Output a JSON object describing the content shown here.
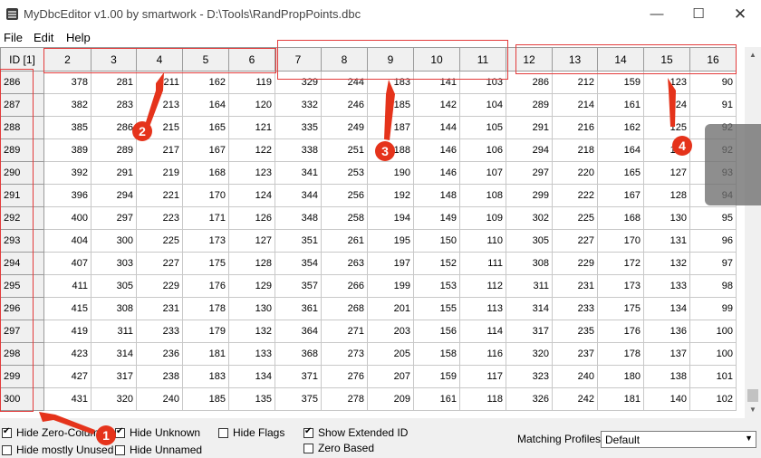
{
  "window": {
    "title": "MyDbcEditor v1.00 by smartwork - D:\\Tools\\RandPropPoints.dbc",
    "minimize": "—",
    "maximize": "☐",
    "close": "✕"
  },
  "menu": {
    "file": "File",
    "edit": "Edit",
    "help": "Help"
  },
  "grid": {
    "columns": [
      "ID [1]",
      "2",
      "3",
      "4",
      "5",
      "6",
      "7",
      "8",
      "9",
      "10",
      "11",
      "12",
      "13",
      "14",
      "15",
      "16"
    ],
    "rows": [
      [
        "286",
        "378",
        "281",
        "211",
        "162",
        "119",
        "329",
        "244",
        "183",
        "141",
        "103",
        "286",
        "212",
        "159",
        "123",
        "90"
      ],
      [
        "287",
        "382",
        "283",
        "213",
        "164",
        "120",
        "332",
        "246",
        "185",
        "142",
        "104",
        "289",
        "214",
        "161",
        "124",
        "91"
      ],
      [
        "288",
        "385",
        "286",
        "215",
        "165",
        "121",
        "335",
        "249",
        "187",
        "144",
        "105",
        "291",
        "216",
        "162",
        "125",
        "92"
      ],
      [
        "289",
        "389",
        "289",
        "217",
        "167",
        "122",
        "338",
        "251",
        "188",
        "146",
        "106",
        "294",
        "218",
        "164",
        "127",
        "92"
      ],
      [
        "290",
        "392",
        "291",
        "219",
        "168",
        "123",
        "341",
        "253",
        "190",
        "146",
        "107",
        "297",
        "220",
        "165",
        "127",
        "93"
      ],
      [
        "291",
        "396",
        "294",
        "221",
        "170",
        "124",
        "344",
        "256",
        "192",
        "148",
        "108",
        "299",
        "222",
        "167",
        "128",
        "94"
      ],
      [
        "292",
        "400",
        "297",
        "223",
        "171",
        "126",
        "348",
        "258",
        "194",
        "149",
        "109",
        "302",
        "225",
        "168",
        "130",
        "95"
      ],
      [
        "293",
        "404",
        "300",
        "225",
        "173",
        "127",
        "351",
        "261",
        "195",
        "150",
        "110",
        "305",
        "227",
        "170",
        "131",
        "96"
      ],
      [
        "294",
        "407",
        "303",
        "227",
        "175",
        "128",
        "354",
        "263",
        "197",
        "152",
        "111",
        "308",
        "229",
        "172",
        "132",
        "97"
      ],
      [
        "295",
        "411",
        "305",
        "229",
        "176",
        "129",
        "357",
        "266",
        "199",
        "153",
        "112",
        "311",
        "231",
        "173",
        "133",
        "98"
      ],
      [
        "296",
        "415",
        "308",
        "231",
        "178",
        "130",
        "361",
        "268",
        "201",
        "155",
        "113",
        "314",
        "233",
        "175",
        "134",
        "99"
      ],
      [
        "297",
        "419",
        "311",
        "233",
        "179",
        "132",
        "364",
        "271",
        "203",
        "156",
        "114",
        "317",
        "235",
        "176",
        "136",
        "100"
      ],
      [
        "298",
        "423",
        "314",
        "236",
        "181",
        "133",
        "368",
        "273",
        "205",
        "158",
        "116",
        "320",
        "237",
        "178",
        "137",
        "100"
      ],
      [
        "299",
        "427",
        "317",
        "238",
        "183",
        "134",
        "371",
        "276",
        "207",
        "159",
        "117",
        "323",
        "240",
        "180",
        "138",
        "101"
      ],
      [
        "300",
        "431",
        "320",
        "240",
        "185",
        "135",
        "375",
        "278",
        "209",
        "161",
        "118",
        "326",
        "242",
        "181",
        "140",
        "102"
      ]
    ]
  },
  "scrollbar": {
    "up_arrow": "▲",
    "down_arrow": "▼"
  },
  "options": {
    "hide_zero_columns": {
      "label": "Hide Zero-Columns",
      "checked": true
    },
    "hide_mostly_unused": {
      "label": "Hide mostly Unused",
      "checked": false
    },
    "hide_unknown": {
      "label": "Hide Unknown",
      "checked": true
    },
    "hide_unnamed": {
      "label": "Hide Unnamed",
      "checked": false
    },
    "hide_flags": {
      "label": "Hide Flags",
      "checked": false
    },
    "show_extended_id": {
      "label": "Show Extended ID",
      "checked": true
    },
    "zero_based": {
      "label": "Zero Based",
      "checked": false
    }
  },
  "profiles": {
    "label": "Matching Profiles:",
    "value": "Default",
    "arrow": "▼"
  },
  "annotations": {
    "n1": "1",
    "n2": "2",
    "n3": "3",
    "n4": "4",
    "color": "#e5331b"
  }
}
